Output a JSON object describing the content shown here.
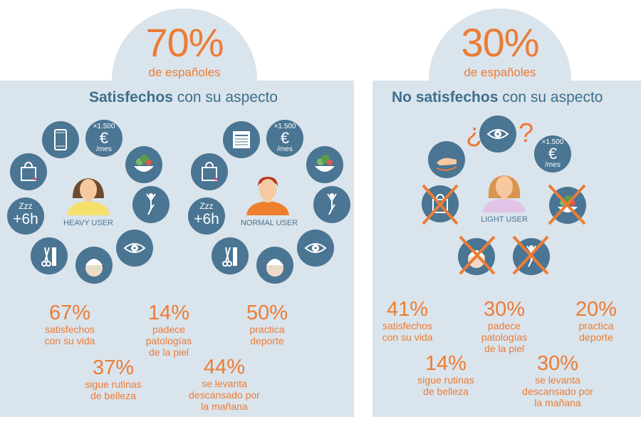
{
  "left": {
    "headline_pct": "70%",
    "headline_sub": "de españoles",
    "heading_bold": "Satisfechos",
    "heading_rest": " con su aspecto",
    "heavy_user_label": "HEAVY USER",
    "normal_user_label": "NORMAL USER",
    "icons": {
      "money_top": "×1.500",
      "money_symbol": "€",
      "money_unit": "/mes",
      "sleep_z": "Zzz",
      "sleep_hours": "+6h"
    },
    "stats": [
      {
        "pct": "67%",
        "desc": [
          "satisfechos",
          "con su vida"
        ]
      },
      {
        "pct": "14%",
        "desc": [
          "padece",
          "patologías",
          "de la piel"
        ]
      },
      {
        "pct": "50%",
        "desc": [
          "practica",
          "deporte"
        ]
      },
      {
        "pct": "37%",
        "desc": [
          "sigue rutinas",
          "de belleza"
        ]
      },
      {
        "pct": "44%",
        "desc": [
          "se levanta",
          "descansado por",
          "la mañana"
        ]
      }
    ]
  },
  "right": {
    "headline_pct": "30%",
    "headline_sub": "de españoles",
    "heading_bold": "No satisfechos",
    "heading_rest": " con su aspecto",
    "light_user_label": "LIGHT USER",
    "question_open": "¿",
    "question_close": "?",
    "icons": {
      "money_top": "×1.500",
      "money_symbol": "€",
      "money_unit": "/mes"
    },
    "stats": [
      {
        "pct": "41%",
        "desc": [
          "satisfechos",
          "con su vida"
        ]
      },
      {
        "pct": "30%",
        "desc": [
          "padece",
          "patologías",
          "de la piel"
        ]
      },
      {
        "pct": "20%",
        "desc": [
          "practica",
          "deporte"
        ]
      },
      {
        "pct": "14%",
        "desc": [
          "sigue rutinas",
          "de belleza"
        ]
      },
      {
        "pct": "30%",
        "desc": [
          "se levanta",
          "descansado por",
          "la mañana"
        ]
      }
    ]
  },
  "colors": {
    "panel": "#dae4ec",
    "circle": "#4a7593",
    "accent": "#ec7c35",
    "heading": "#3d6f8c"
  }
}
